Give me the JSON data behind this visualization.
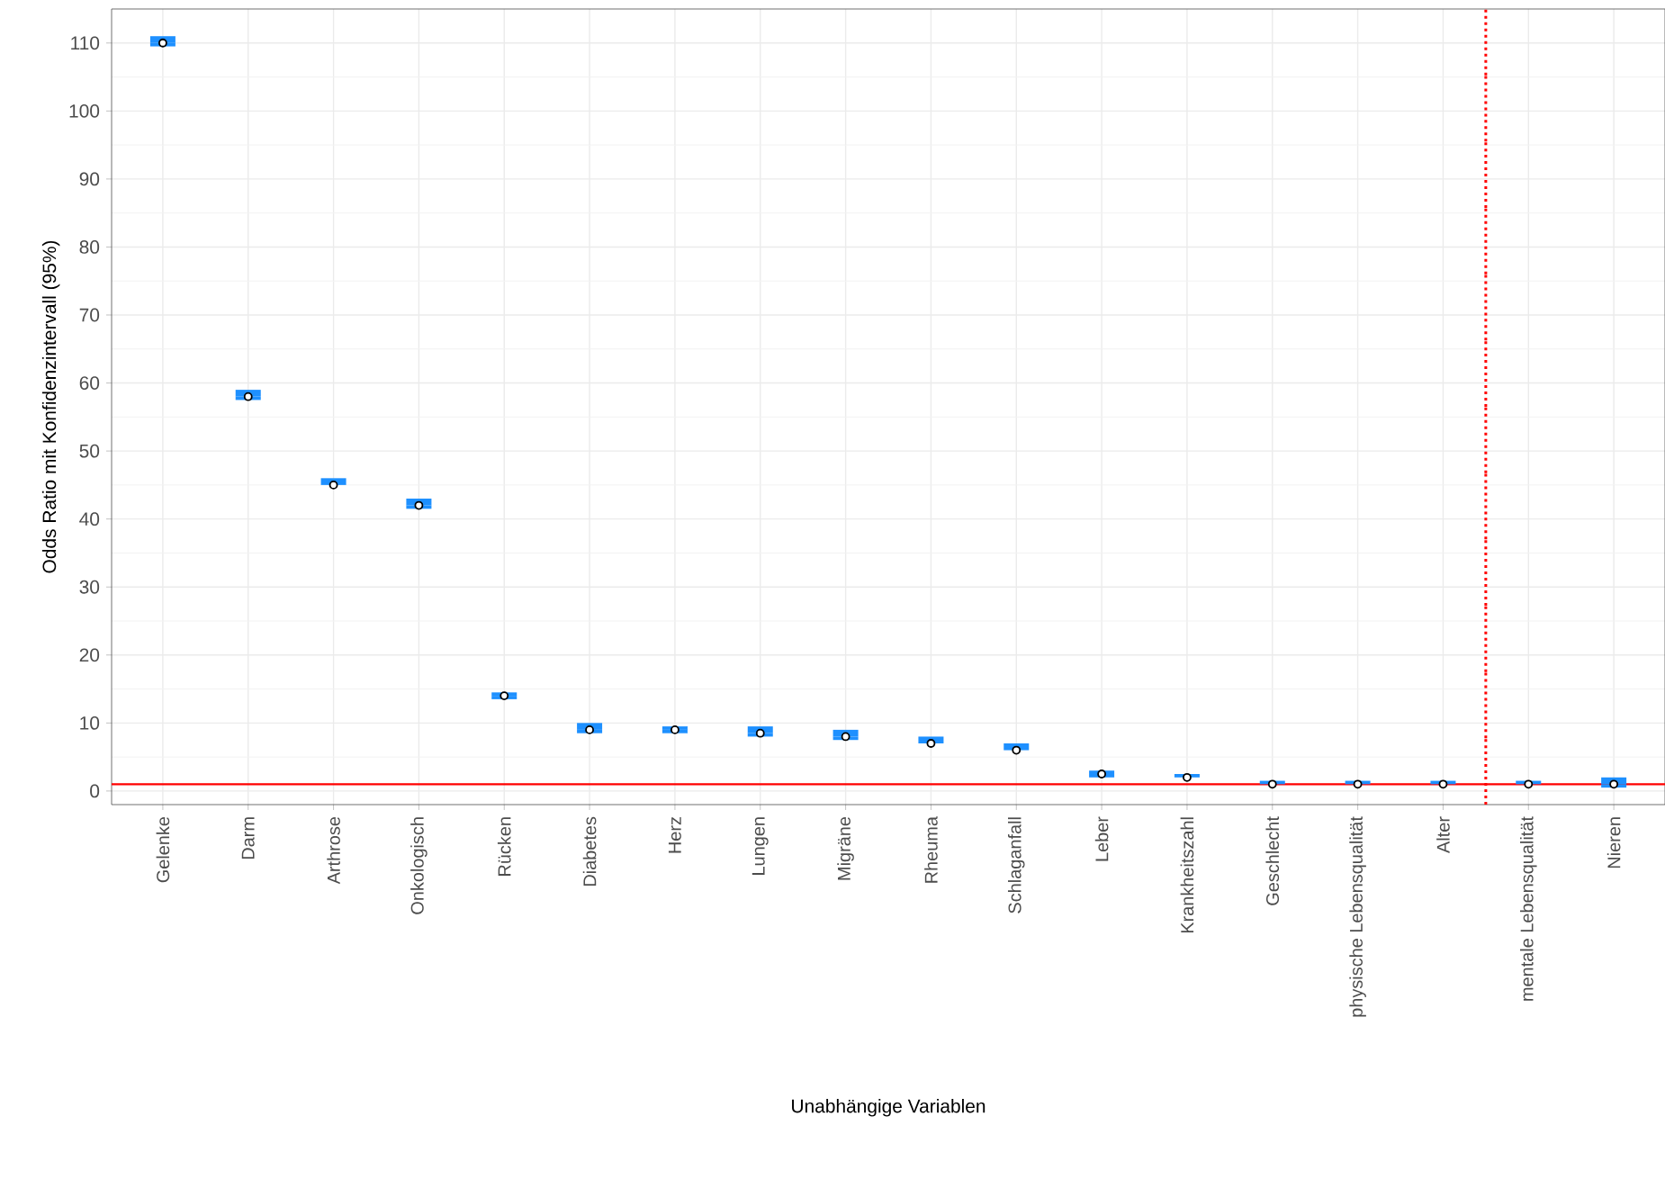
{
  "chart_data": {
    "type": "scatter",
    "xlabel": "Unabhängige Variablen",
    "ylabel": "Odds Ratio mit Konfidenzintervall (95%)",
    "categories": [
      "Gelenke",
      "Darm",
      "Arthrose",
      "Onkologisch",
      "Rücken",
      "Diabetes",
      "Herz",
      "Lungen",
      "Migräne",
      "Rheuma",
      "Schlaganfall",
      "Leber",
      "Krankheitszahl",
      "Geschlecht",
      "physische Lebensqualität",
      "Alter",
      "mentale Lebensqualität",
      "Nieren"
    ],
    "series": [
      {
        "color": "#000000",
        "values": [
          110,
          58,
          45,
          42,
          14,
          9,
          9,
          8.5,
          8,
          7,
          6,
          2.5,
          2,
          1,
          1,
          1,
          1,
          1
        ],
        "errors": [
          [
            109.5,
            111
          ],
          [
            57.5,
            59
          ],
          [
            45,
            46
          ],
          [
            41.5,
            43
          ],
          [
            13.5,
            14.5
          ],
          [
            8.5,
            10
          ],
          [
            8.5,
            9.5
          ],
          [
            8,
            9.5
          ],
          [
            7.5,
            9
          ],
          [
            7,
            8
          ],
          [
            6,
            7
          ],
          [
            2,
            3
          ],
          [
            2,
            2.5
          ],
          [
            1,
            1.5
          ],
          [
            1,
            1.5
          ],
          [
            1,
            1.5
          ],
          [
            1,
            1.5
          ],
          [
            0.5,
            2
          ]
        ]
      }
    ],
    "ylim": [
      -2,
      115
    ],
    "yticks": [
      0,
      10,
      20,
      30,
      40,
      50,
      60,
      70,
      80,
      90,
      100,
      110
    ],
    "grid": true,
    "ref_lines": [
      {
        "axis": "y",
        "value": 1,
        "color": "#ff0000",
        "line_style": "solid"
      }
    ]
  }
}
